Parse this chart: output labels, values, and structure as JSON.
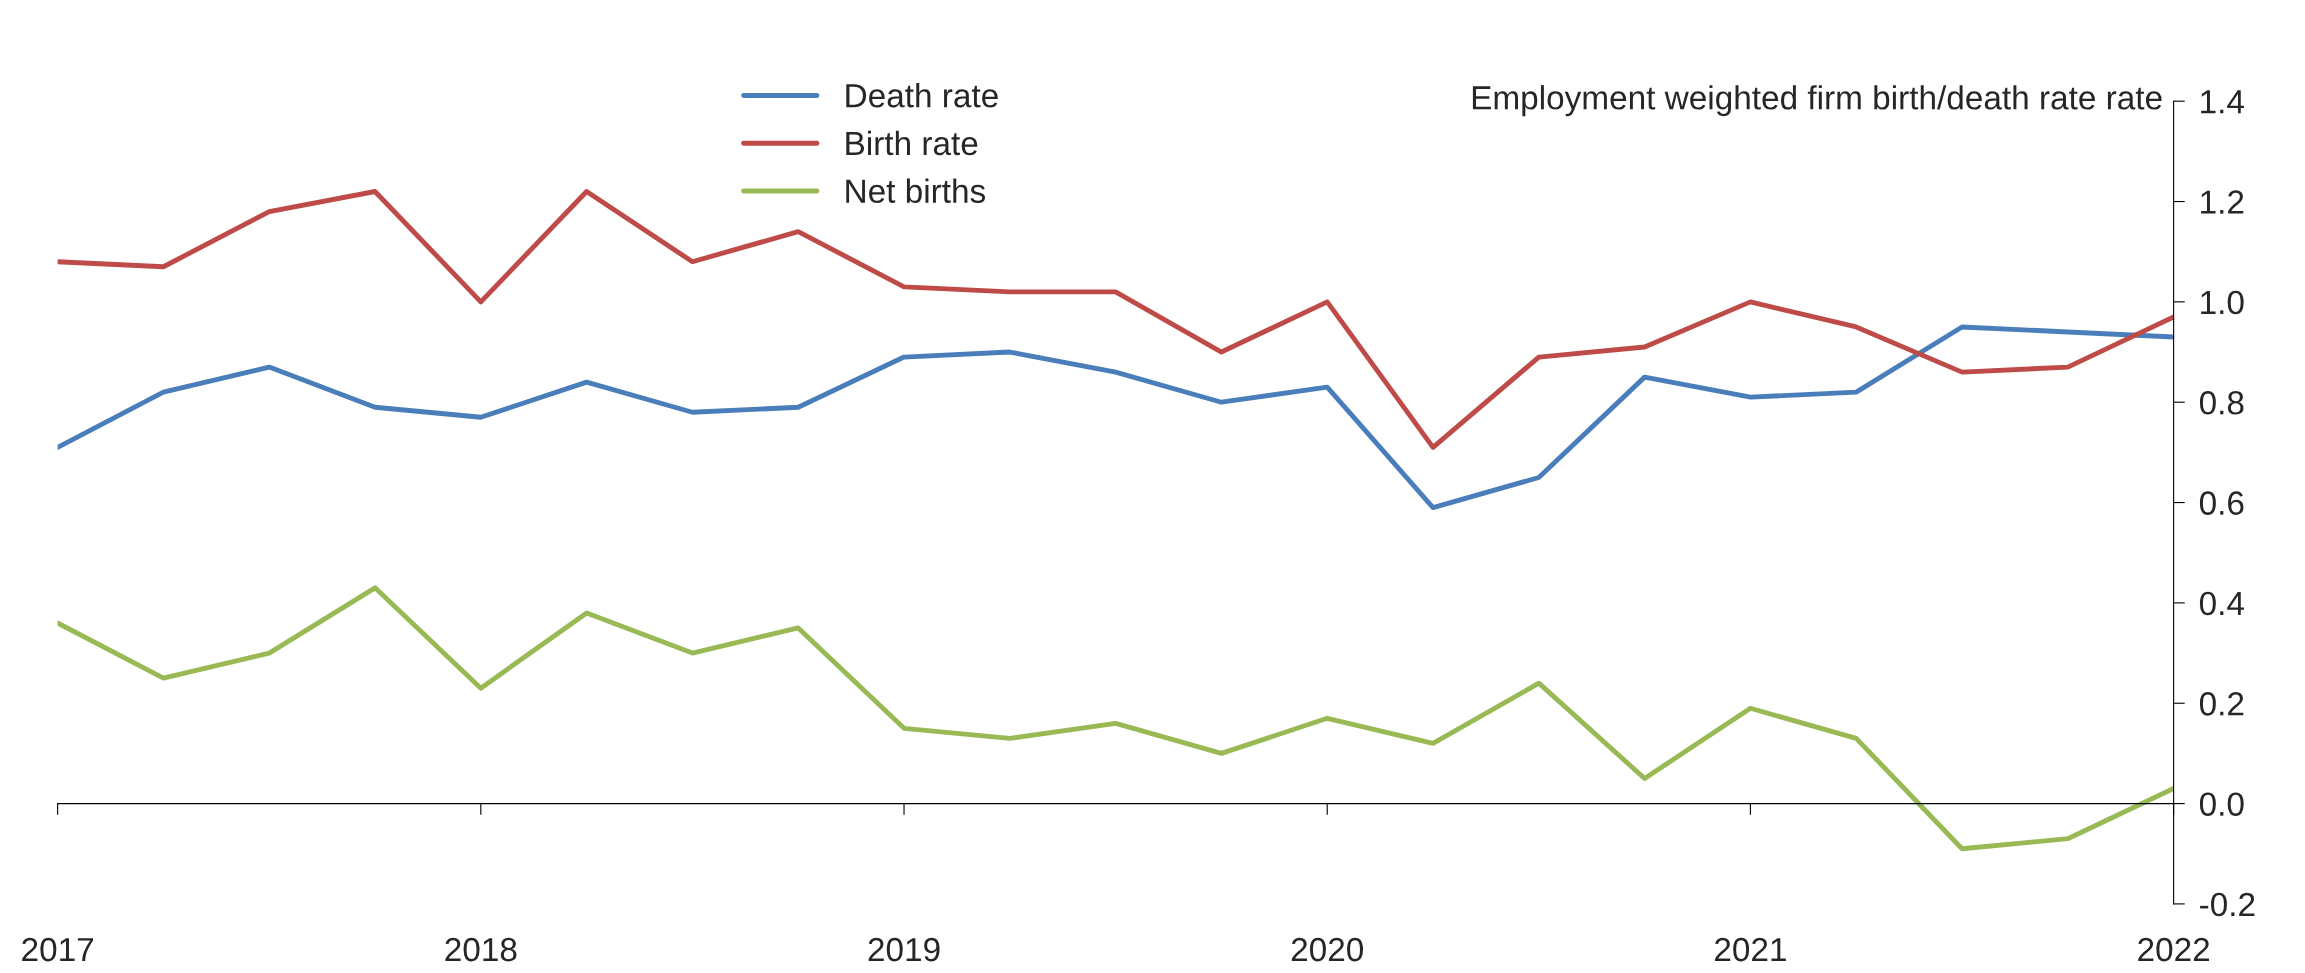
{
  "chart_data": {
    "type": "line",
    "ylabel": "Employment weighted firm birth/death rate rate",
    "x": [
      2017,
      2017.25,
      2017.5,
      2017.75,
      2018,
      2018.25,
      2018.5,
      2018.75,
      2019,
      2019.25,
      2019.5,
      2019.75,
      2020,
      2020.25,
      2020.5,
      2020.75,
      2021,
      2021.25,
      2021.5,
      2021.75,
      2022
    ],
    "series": [
      {
        "name": "Death rate",
        "color": "#4a7ebb",
        "values": [
          0.71,
          0.82,
          0.87,
          0.79,
          0.77,
          0.84,
          0.78,
          0.79,
          0.89,
          0.9,
          0.86,
          0.8,
          0.83,
          0.59,
          0.65,
          0.85,
          0.81,
          0.82,
          0.95,
          0.94,
          0.93
        ]
      },
      {
        "name": "Birth rate",
        "color": "#be4b48",
        "values": [
          1.08,
          1.07,
          1.18,
          1.22,
          1.0,
          1.22,
          1.08,
          1.14,
          1.03,
          1.02,
          1.02,
          0.9,
          1.0,
          0.71,
          0.89,
          0.91,
          1.0,
          0.95,
          0.86,
          0.87,
          0.97
        ]
      },
      {
        "name": "Net births",
        "color": "#98b954",
        "values": [
          0.36,
          0.25,
          0.3,
          0.43,
          0.23,
          0.38,
          0.3,
          0.35,
          0.15,
          0.13,
          0.16,
          0.1,
          0.17,
          0.12,
          0.24,
          0.05,
          0.19,
          0.13,
          -0.09,
          -0.07,
          0.03
        ]
      }
    ],
    "xlim": [
      2017,
      2022
    ],
    "xticks": [
      2017,
      2018,
      2019,
      2020,
      2021,
      2022
    ],
    "ylim": [
      -0.2,
      1.4
    ],
    "yticks": [
      {
        "value": -0.2,
        "label": "-0.2"
      },
      {
        "value": 0,
        "label": "0.0"
      },
      {
        "value": 0.2,
        "label": "0.2"
      },
      {
        "value": 0.4,
        "label": "0.4"
      },
      {
        "value": 0.6,
        "label": "0.6"
      },
      {
        "value": 0.8,
        "label": "0.8"
      },
      {
        "value": 1.0,
        "label": "1.0"
      },
      {
        "value": 1.2,
        "label": "1.2"
      },
      {
        "value": 1.4,
        "label": "1.4"
      }
    ],
    "legend": "top left",
    "marker": "none",
    "line_style": "solid"
  }
}
